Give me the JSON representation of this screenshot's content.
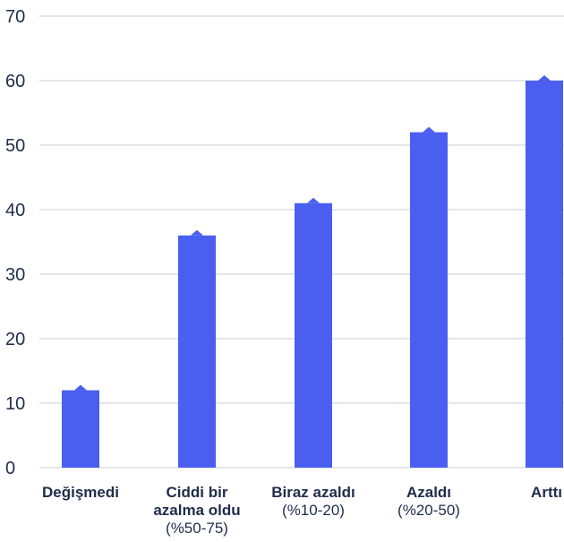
{
  "chart_data": {
    "type": "bar",
    "categories": [
      {
        "bold": [
          "Değişmedi"
        ],
        "normal": []
      },
      {
        "bold": [
          "Ciddi bir",
          "azalma oldu"
        ],
        "normal": [
          "(%50-75)"
        ]
      },
      {
        "bold": [
          "Biraz azaldı"
        ],
        "normal": [
          "(%10-20)"
        ]
      },
      {
        "bold": [
          "Azaldı"
        ],
        "normal": [
          "(%20-50)"
        ]
      },
      {
        "bold": [
          "Arttı"
        ],
        "normal": []
      }
    ],
    "values": [
      12,
      36,
      41,
      52,
      60
    ],
    "ylim": [
      0,
      70
    ],
    "yticks": [
      0,
      10,
      20,
      30,
      40,
      50,
      60,
      70
    ],
    "grid": true,
    "colors": {
      "bar": "#4a5ff0",
      "grid": "#c9ccd6",
      "text": "#1f2d4a"
    }
  }
}
